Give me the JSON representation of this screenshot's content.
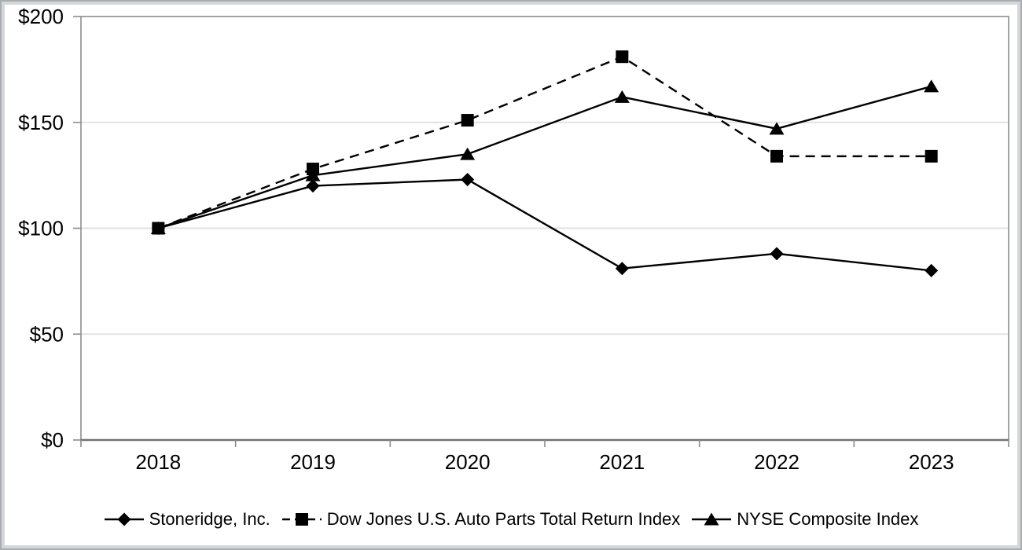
{
  "chart_data": {
    "type": "line",
    "title": "",
    "xlabel": "",
    "ylabel": "",
    "categories": [
      "2018",
      "2019",
      "2020",
      "2021",
      "2022",
      "2023"
    ],
    "series": [
      {
        "name": "Stoneridge, Inc.",
        "values": [
          100,
          120,
          123,
          81,
          88,
          80
        ],
        "marker": "diamond",
        "line_style": "solid"
      },
      {
        "name": "Dow Jones U.S. Auto Parts Total Return Index",
        "values": [
          100,
          128,
          151,
          181,
          134,
          134
        ],
        "marker": "square",
        "line_style": "dashed"
      },
      {
        "name": "NYSE Composite Index",
        "values": [
          100,
          125,
          135,
          162,
          147,
          167
        ],
        "marker": "triangle",
        "line_style": "solid"
      }
    ],
    "ylim": [
      0,
      200
    ],
    "y_ticks": [
      {
        "value": 0,
        "label": "$0"
      },
      {
        "value": 50,
        "label": "$50"
      },
      {
        "value": 100,
        "label": "$100"
      },
      {
        "value": 150,
        "label": "$150"
      },
      {
        "value": 200,
        "label": "$200"
      }
    ],
    "grid": "horizontal",
    "legend_position": "bottom"
  },
  "colors": {
    "series_color": "#000000",
    "gridline": "#e2e2e2",
    "axis_border": "#8c8c8c",
    "bottom_axis": "#737373",
    "text": "#000000",
    "frame_outer": "#a9adb1",
    "frame_inner": "#d4d7d9",
    "background": "#ffffff"
  }
}
